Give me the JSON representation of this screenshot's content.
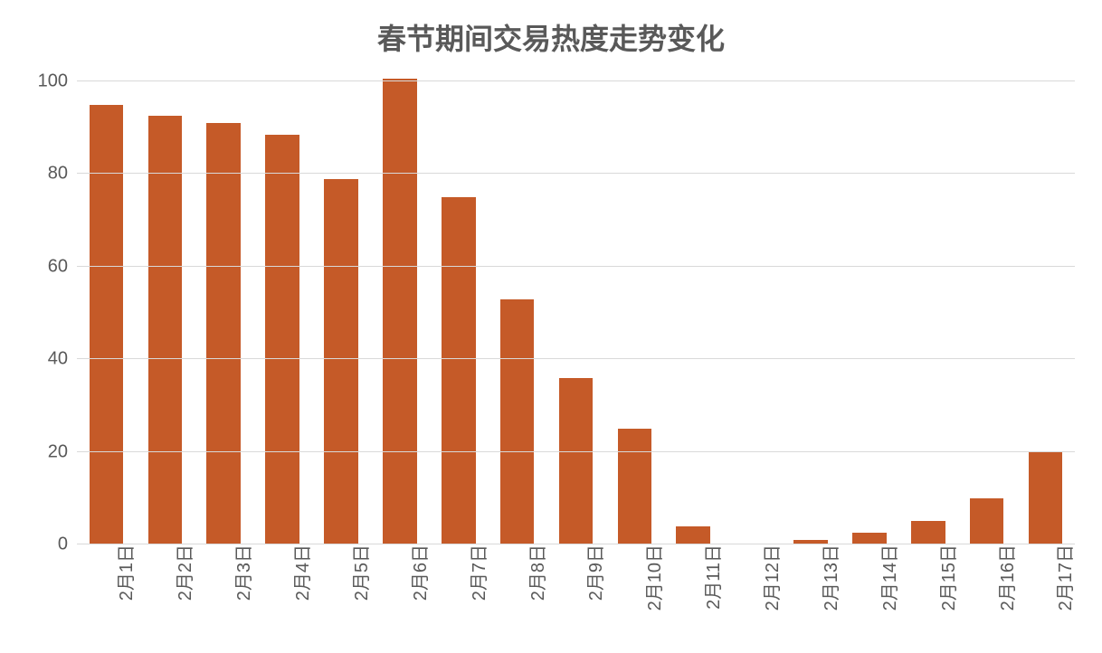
{
  "chart": {
    "type": "bar",
    "title": "春节期间交易热度走势变化",
    "title_fontsize": 32,
    "title_color": "#595959",
    "categories": [
      "2月1日",
      "2月2日",
      "2月3日",
      "2月4日",
      "2月5日",
      "2月6日",
      "2月7日",
      "2月8日",
      "2月9日",
      "2月10日",
      "2月11日",
      "2月12日",
      "2月13日",
      "2月14日",
      "2月15日",
      "2月16日",
      "2月17日"
    ],
    "values": [
      95,
      92.5,
      91,
      88.5,
      79,
      100.5,
      75,
      53,
      36,
      25,
      4,
      0,
      1,
      2.5,
      5,
      10,
      20
    ],
    "bar_color": "#c55a28",
    "y": {
      "min": 0,
      "max": 100,
      "tick_step": 20,
      "ticks": [
        0,
        20,
        40,
        60,
        80,
        100
      ],
      "label_fontsize": 20,
      "label_color": "#595959"
    },
    "x": {
      "label_fontsize": 20,
      "label_color": "#595959",
      "label_rotation_deg": -90
    },
    "grid_color": "#d9d9d9",
    "background_color": "#ffffff",
    "bar_width_ratio": 0.58
  }
}
